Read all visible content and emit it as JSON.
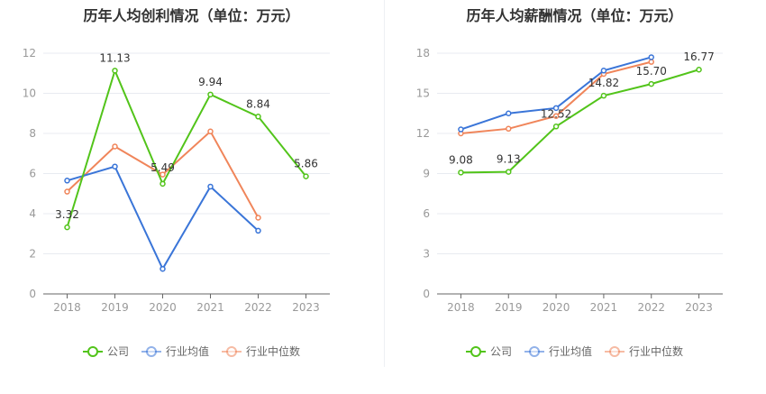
{
  "legend": {
    "company": "公司",
    "industry_avg": "行业均值",
    "industry_median": "行业中位数"
  },
  "colors": {
    "company": "#52c41a",
    "industry_avg": "#3a75d8",
    "industry_median": "#f0855a",
    "axis": "#999999",
    "grid": "#e8ebf0",
    "label": "#333333"
  },
  "chart_data": [
    {
      "type": "line",
      "title": "历年人均创利情况（单位：万元）",
      "categories": [
        "2018",
        "2019",
        "2020",
        "2021",
        "2022",
        "2023"
      ],
      "ylim": [
        0,
        12
      ],
      "yticks": [
        0,
        2,
        4,
        6,
        8,
        10,
        12
      ],
      "series": [
        {
          "key": "company",
          "name": "公司",
          "values": [
            3.32,
            11.13,
            5.49,
            9.94,
            8.84,
            5.86
          ],
          "labels": [
            "3.32",
            "11.13",
            "5.49",
            "9.94",
            "8.84",
            "5.86"
          ]
        },
        {
          "key": "industry_avg",
          "name": "行业均值",
          "values": [
            5.65,
            6.35,
            1.25,
            5.35,
            3.15,
            null
          ]
        },
        {
          "key": "industry_median",
          "name": "行业中位数",
          "values": [
            5.1,
            7.35,
            5.95,
            8.1,
            3.8,
            null
          ]
        }
      ],
      "grid": true,
      "legend": "bottom-center"
    },
    {
      "type": "line",
      "title": "历年人均薪酬情况（单位：万元）",
      "categories": [
        "2018",
        "2019",
        "2020",
        "2021",
        "2022",
        "2023"
      ],
      "ylim": [
        0,
        18
      ],
      "yticks": [
        0,
        3,
        6,
        9,
        12,
        15,
        18
      ],
      "series": [
        {
          "key": "company",
          "name": "公司",
          "values": [
            9.08,
            9.13,
            12.52,
            14.82,
            15.7,
            16.77
          ],
          "labels": [
            "9.08",
            "9.13",
            "12.52",
            "14.82",
            "15.70",
            "16.77"
          ]
        },
        {
          "key": "industry_avg",
          "name": "行业均值",
          "values": [
            12.3,
            13.5,
            13.9,
            16.7,
            17.7,
            null
          ]
        },
        {
          "key": "industry_median",
          "name": "行业中位数",
          "values": [
            12.0,
            12.35,
            13.3,
            16.45,
            17.35,
            null
          ]
        }
      ],
      "grid": true,
      "legend": "bottom-center"
    }
  ]
}
